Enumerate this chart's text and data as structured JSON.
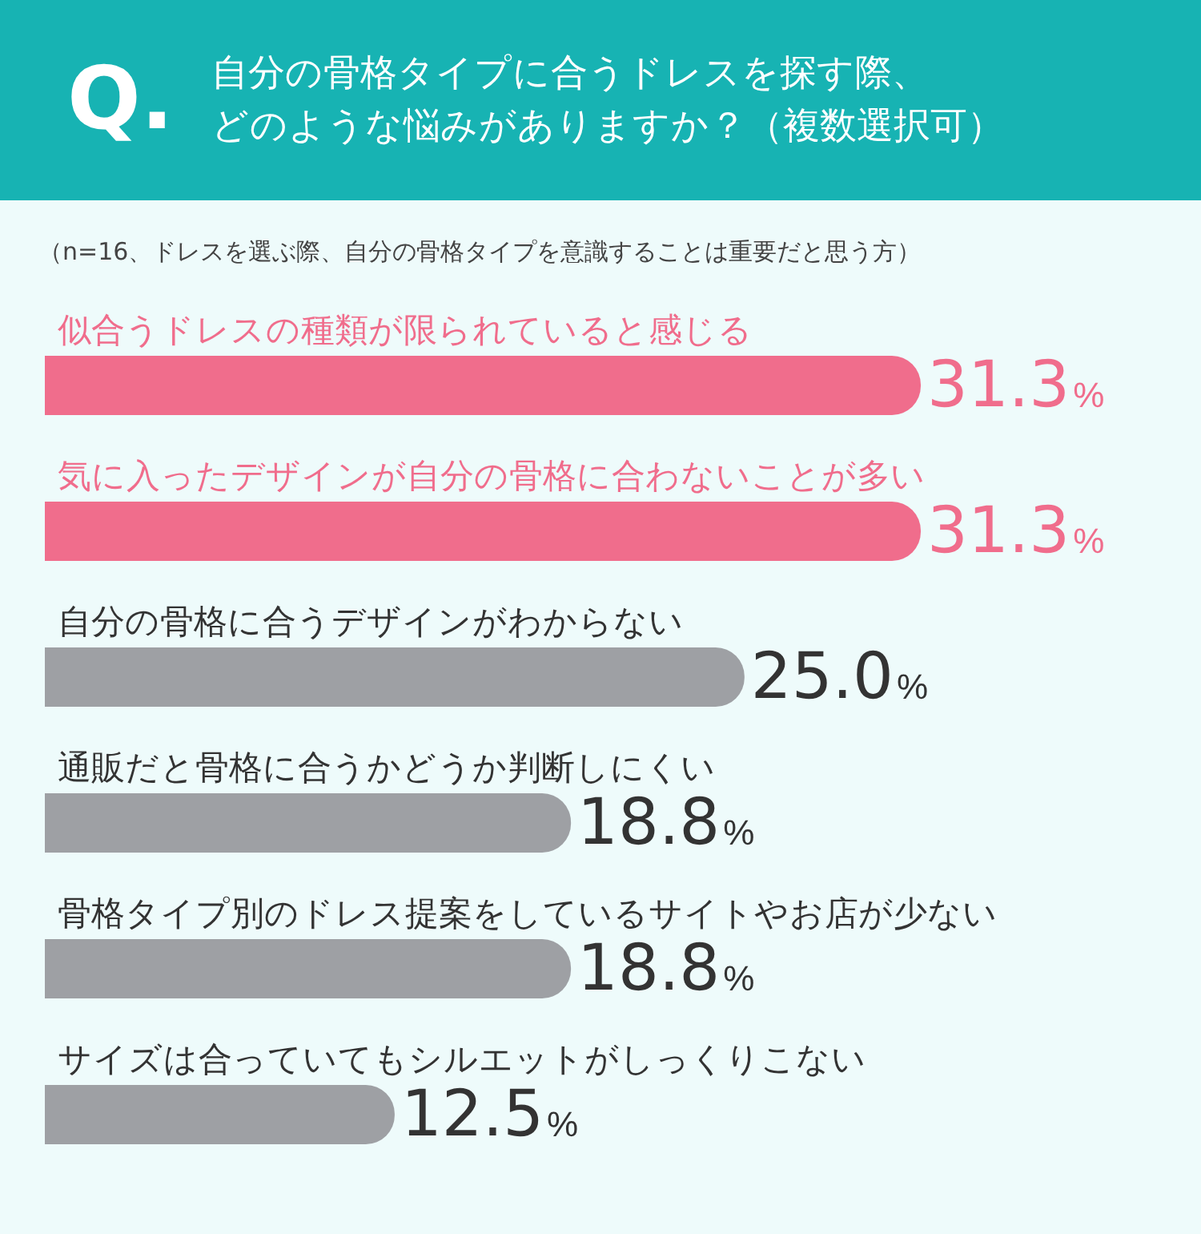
{
  "chart_data": {
    "type": "bar",
    "orientation": "horizontal",
    "title": "Q. 自分の骨格タイプに合うドレスを探す際、どのような悩みがありますか？（複数選択可）",
    "subtitle": "（n=16、ドレスを選ぶ際、自分の骨格タイプを意識することは重要だと思う方）",
    "categories": [
      "似合うドレスの種類が限られていると感じる",
      "気に入ったデザインが自分の骨格に合わないことが多い",
      "自分の骨格に合うデザインがわからない",
      "通販だと骨格に合うかどうか判断しにくい",
      "骨格タイプ別のドレス提案をしているサイトやお店が少ない",
      "サイズは合っていてもシルエットがしっくりこない"
    ],
    "values": [
      31.3,
      31.3,
      25.0,
      18.8,
      18.8,
      12.5
    ],
    "colors": [
      "#f06d8c",
      "#f06d8c",
      "#9ea0a4",
      "#9ea0a4",
      "#9ea0a4",
      "#9ea0a4"
    ],
    "value_labels": [
      "31.3%",
      "31.3%",
      "25.0%",
      "18.8%",
      "18.8%",
      "12.5%"
    ]
  }
}
